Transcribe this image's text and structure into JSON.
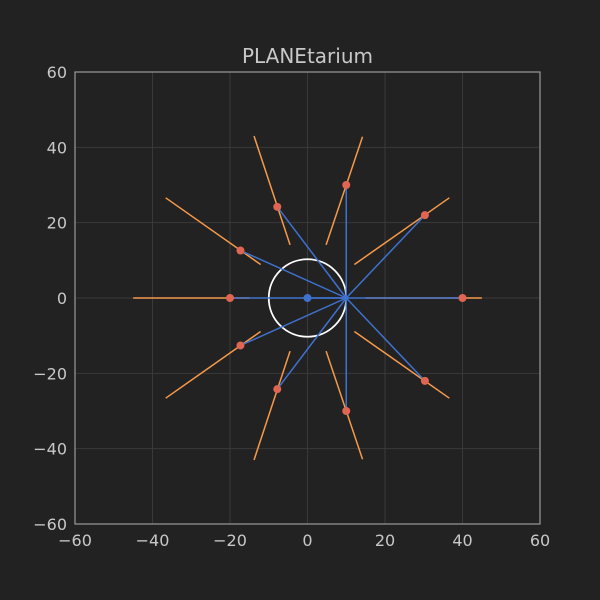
{
  "chart_data": {
    "type": "scatter",
    "title": "PLANEtarium",
    "xlabel": "",
    "ylabel": "",
    "xlim": [
      -60,
      60
    ],
    "ylim": [
      -60,
      60
    ],
    "xticks": [
      -60,
      -40,
      -20,
      0,
      20,
      40,
      60
    ],
    "yticks": [
      -60,
      -40,
      -20,
      0,
      20,
      40,
      60
    ],
    "xtick_labels": [
      "−60",
      "−40",
      "−20",
      "0",
      "20",
      "40",
      "60"
    ],
    "ytick_labels": [
      "−60",
      "−40",
      "−20",
      "0",
      "20",
      "40",
      "60"
    ],
    "grid": true,
    "colors": {
      "background": "#222222",
      "grid": "#3a3a3a",
      "frame": "#9a9a9a",
      "text": "#c8c8c8",
      "blue": "#3f72cf",
      "orange": "#f5994a",
      "point": "#e06552",
      "circle": "#ffffff"
    },
    "circle": {
      "center": [
        0,
        0
      ],
      "radius": 10
    },
    "center_point": [
      0,
      0
    ],
    "focus_point": [
      10,
      0
    ],
    "points": [
      [
        40,
        0
      ],
      [
        30.3,
        22
      ],
      [
        10,
        30
      ],
      [
        -7.8,
        24.2
      ],
      [
        -17.3,
        12.6
      ],
      [
        -20,
        0
      ],
      [
        -17.3,
        -12.6
      ],
      [
        -7.8,
        -24.2
      ],
      [
        10,
        -30
      ],
      [
        30.3,
        -22
      ]
    ],
    "tangent_segments": [
      [
        [
          14.2,
          42.8
        ],
        [
          4.8,
          14.1
        ]
      ],
      [
        [
          -13.8,
          43
        ],
        [
          -4.5,
          14.1
        ]
      ],
      [
        [
          36.6,
          26.6
        ],
        [
          12.1,
          8.9
        ]
      ],
      [
        [
          -36.6,
          26.6
        ],
        [
          -12.1,
          8.9
        ]
      ],
      [
        [
          -45,
          0
        ],
        [
          -15,
          0
        ]
      ],
      [
        [
          -36.6,
          -26.6
        ],
        [
          -12.1,
          -8.9
        ]
      ],
      [
        [
          -13.8,
          -43
        ],
        [
          -4.5,
          -14.1
        ]
      ],
      [
        [
          14.2,
          -42.8
        ],
        [
          4.8,
          -14.1
        ]
      ],
      [
        [
          36.6,
          -26.6
        ],
        [
          12.1,
          -8.9
        ]
      ],
      [
        [
          45,
          0
        ],
        [
          15,
          0
        ]
      ]
    ]
  }
}
